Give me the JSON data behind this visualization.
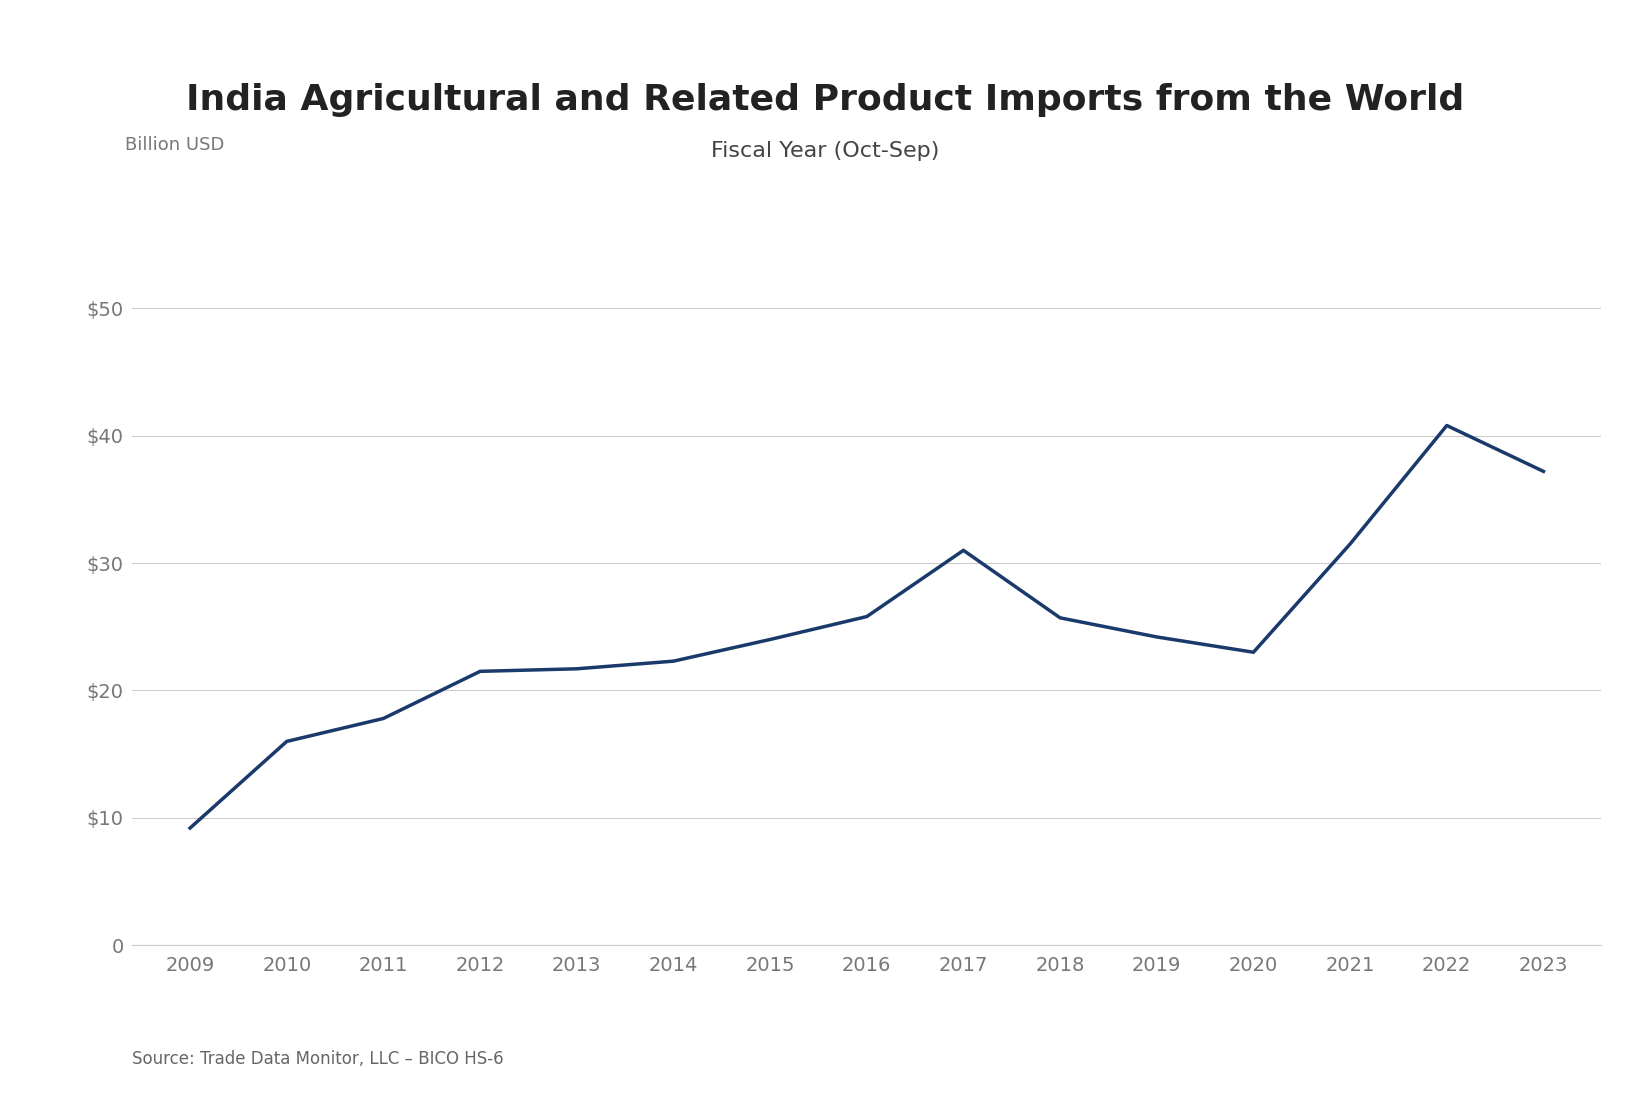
{
  "title": "India Agricultural and Related Product Imports from the World",
  "subtitle": "Fiscal Year (Oct-Sep)",
  "ylabel": "Billion USD",
  "source": "Source: Trade Data Monitor, LLC – BICO HS-6",
  "years": [
    2009,
    2010,
    2011,
    2012,
    2013,
    2014,
    2015,
    2016,
    2017,
    2018,
    2019,
    2020,
    2021,
    2022,
    2023
  ],
  "values": [
    9.2,
    16.0,
    17.8,
    21.5,
    21.7,
    22.3,
    24.0,
    25.8,
    31.0,
    25.7,
    24.2,
    23.0,
    31.5,
    40.8,
    37.2
  ],
  "line_color": "#1a3a6b",
  "line_width": 2.5,
  "ylim": [
    0,
    55
  ],
  "yticks": [
    0,
    10,
    20,
    30,
    40,
    50
  ],
  "ytick_labels": [
    "0",
    "$10",
    "$20",
    "$30",
    "$40",
    "$50"
  ],
  "grid_color": "#cccccc",
  "background_color": "#ffffff",
  "title_fontsize": 26,
  "subtitle_fontsize": 16,
  "tick_fontsize": 14,
  "ylabel_fontsize": 13,
  "source_fontsize": 12
}
